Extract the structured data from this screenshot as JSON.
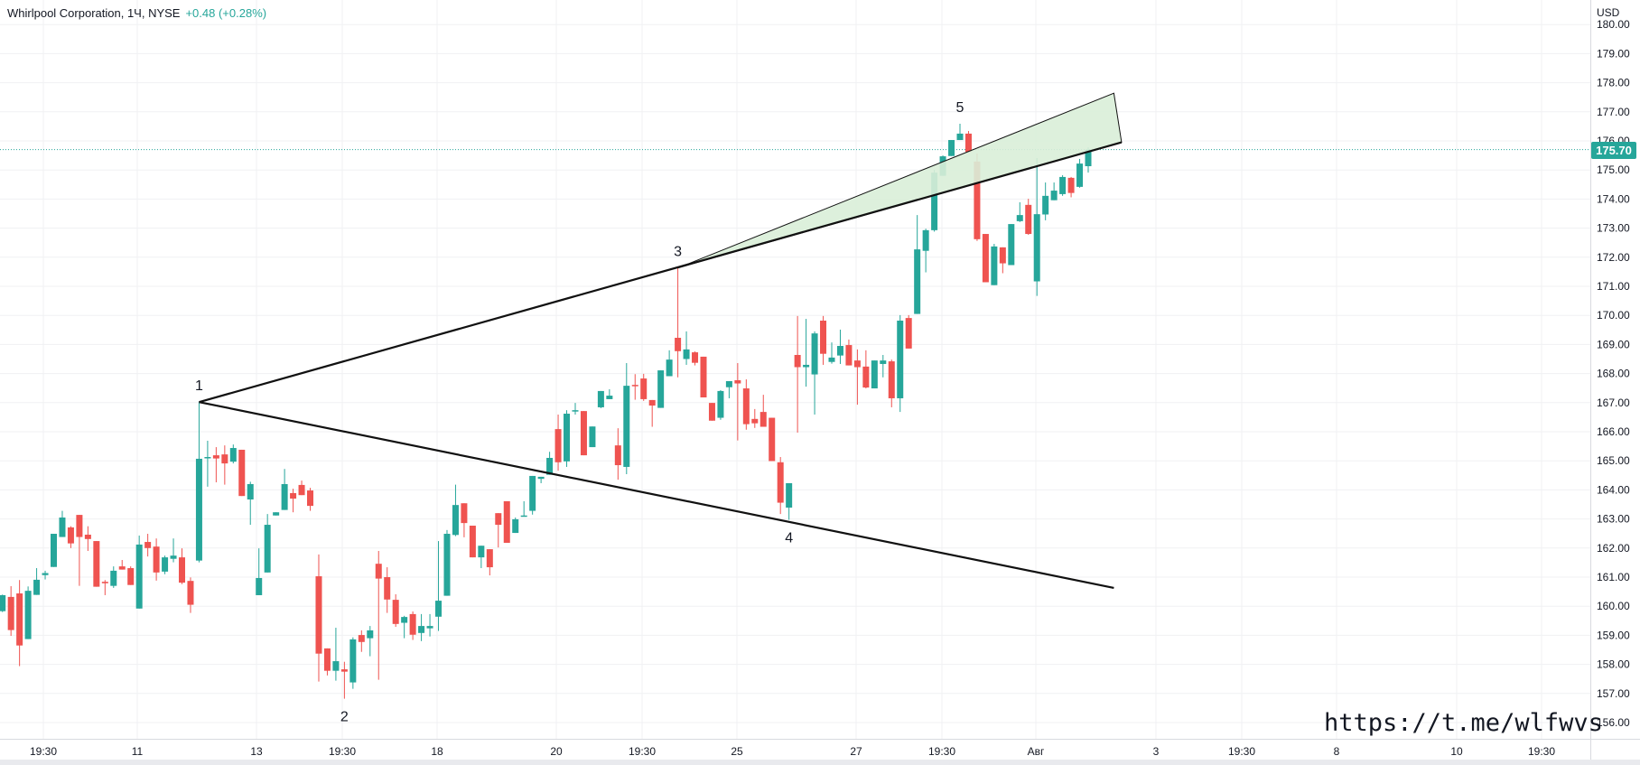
{
  "header": {
    "title": "Whirlpool Corporation, 1Ч, NYSE",
    "change": "+0.48 (+0.28%)"
  },
  "currency": "USD",
  "last_price": "175.70",
  "watermark": "https://t.me/wlfwvs",
  "colors": {
    "up": "#26a69a",
    "down": "#ef5350",
    "grid": "#f0f1f3",
    "text": "#131722",
    "fill": "#d9eed8"
  },
  "chart_data": {
    "type": "candlestick",
    "title": "Whirlpool Corporation, 1Ч, NYSE",
    "ylabel": "USD",
    "ylim": [
      155.6,
      180.0
    ],
    "grid": true,
    "y_ticks": [
      "180.00",
      "179.00",
      "178.00",
      "177.00",
      "176.00",
      "175.00",
      "174.00",
      "173.00",
      "172.00",
      "171.00",
      "170.00",
      "169.00",
      "168.00",
      "167.00",
      "166.00",
      "165.00",
      "164.00",
      "163.00",
      "162.00",
      "161.00",
      "160.00",
      "159.00",
      "158.00",
      "157.00",
      "156.00"
    ],
    "x_ticks": [
      "19:30",
      "11",
      "13",
      "19:30",
      "18",
      "20",
      "19:30",
      "25",
      "27",
      "19:30",
      "Авг",
      "3",
      "19:30",
      "8",
      "10",
      "19:30"
    ],
    "candles_format": [
      "open",
      "high",
      "low",
      "close"
    ],
    "candles": [
      [
        159.83,
        160.4,
        159.8,
        160.38
      ],
      [
        160.32,
        160.69,
        158.98,
        159.18
      ],
      [
        160.44,
        160.9,
        157.94,
        158.65
      ],
      [
        158.87,
        160.68,
        158.87,
        160.53
      ],
      [
        160.39,
        161.31,
        160.39,
        160.91
      ],
      [
        161.07,
        161.22,
        160.92,
        161.14
      ],
      [
        161.35,
        162.49,
        161.35,
        162.49
      ],
      [
        162.38,
        163.28,
        162.38,
        163.05
      ],
      [
        162.71,
        162.75,
        162.0,
        162.16
      ],
      [
        163.14,
        163.14,
        160.7,
        162.38
      ],
      [
        162.46,
        162.75,
        161.9,
        162.31
      ],
      [
        162.24,
        162.24,
        160.67,
        160.67
      ],
      [
        160.84,
        160.9,
        160.38,
        160.79
      ],
      [
        160.7,
        161.37,
        160.63,
        161.22
      ],
      [
        161.37,
        161.59,
        161.26,
        161.26
      ],
      [
        161.31,
        161.37,
        160.73,
        160.73
      ],
      [
        159.92,
        162.43,
        159.92,
        162.12
      ],
      [
        162.21,
        162.49,
        161.71,
        162.0
      ],
      [
        162.05,
        162.33,
        160.88,
        161.16
      ],
      [
        161.19,
        161.74,
        161.1,
        161.68
      ],
      [
        161.63,
        162.33,
        161.51,
        161.74
      ],
      [
        161.68,
        161.99,
        160.76,
        160.81
      ],
      [
        160.87,
        160.99,
        159.77,
        160.05
      ],
      [
        161.57,
        167.02,
        161.51,
        165.07
      ],
      [
        165.09,
        165.69,
        164.11,
        165.13
      ],
      [
        165.19,
        165.47,
        164.26,
        165.08
      ],
      [
        165.22,
        165.53,
        164.18,
        164.91
      ],
      [
        164.97,
        165.56,
        164.91,
        165.44
      ],
      [
        165.38,
        165.38,
        163.79,
        163.79
      ],
      [
        163.67,
        164.28,
        162.8,
        164.2
      ],
      [
        160.38,
        161.99,
        160.38,
        160.97
      ],
      [
        161.16,
        163.17,
        161.16,
        162.8
      ],
      [
        163.12,
        163.23,
        163.12,
        163.23
      ],
      [
        163.31,
        164.72,
        163.31,
        164.2
      ],
      [
        163.89,
        164.04,
        163.23,
        163.7
      ],
      [
        164.17,
        164.32,
        163.82,
        163.82
      ],
      [
        163.98,
        164.07,
        163.28,
        163.45
      ],
      [
        161.03,
        161.78,
        157.41,
        158.37
      ],
      [
        158.55,
        158.55,
        157.62,
        157.78
      ],
      [
        157.78,
        159.26,
        157.44,
        158.11
      ],
      [
        157.83,
        158.09,
        156.82,
        157.75
      ],
      [
        157.38,
        158.93,
        157.16,
        158.86
      ],
      [
        159.01,
        159.17,
        158.43,
        158.77
      ],
      [
        158.9,
        159.32,
        158.28,
        159.17
      ],
      [
        161.46,
        161.9,
        157.47,
        160.95
      ],
      [
        161.0,
        161.34,
        159.77,
        160.23
      ],
      [
        160.22,
        160.41,
        159.29,
        159.39
      ],
      [
        159.43,
        159.67,
        158.9,
        159.63
      ],
      [
        159.73,
        159.82,
        158.84,
        159.02
      ],
      [
        159.08,
        159.73,
        158.8,
        159.32
      ],
      [
        159.24,
        159.73,
        158.96,
        159.32
      ],
      [
        159.64,
        162.24,
        159.15,
        160.19
      ],
      [
        160.36,
        162.62,
        160.36,
        162.49
      ],
      [
        162.45,
        164.18,
        162.41,
        163.48
      ],
      [
        163.54,
        163.54,
        162.37,
        162.86
      ],
      [
        162.77,
        162.77,
        161.68,
        161.68
      ],
      [
        161.68,
        162.08,
        161.31,
        162.08
      ],
      [
        161.96,
        161.96,
        161.06,
        161.34
      ],
      [
        163.2,
        163.2,
        162.02,
        162.8
      ],
      [
        163.61,
        163.61,
        162.18,
        162.18
      ],
      [
        162.52,
        163.05,
        162.52,
        162.99
      ],
      [
        163.08,
        163.61,
        163.08,
        163.12
      ],
      [
        163.28,
        164.48,
        163.15,
        164.48
      ],
      [
        164.38,
        164.45,
        164.23,
        164.45
      ],
      [
        164.52,
        165.31,
        164.52,
        165.1
      ],
      [
        166.09,
        166.59,
        164.66,
        164.95
      ],
      [
        164.98,
        166.74,
        164.79,
        166.62
      ],
      [
        166.7,
        166.99,
        166.59,
        166.74
      ],
      [
        166.71,
        166.71,
        165.19,
        165.19
      ],
      [
        165.47,
        166.18,
        165.47,
        166.18
      ],
      [
        166.84,
        167.4,
        166.81,
        167.4
      ],
      [
        167.12,
        167.46,
        167.12,
        167.24
      ],
      [
        165.53,
        166.12,
        164.35,
        164.85
      ],
      [
        164.79,
        168.36,
        164.54,
        167.58
      ],
      [
        167.61,
        167.98,
        167.1,
        167.59
      ],
      [
        167.83,
        167.99,
        167.06,
        167.12
      ],
      [
        167.09,
        167.09,
        166.17,
        166.9
      ],
      [
        166.82,
        168.11,
        166.82,
        168.11
      ],
      [
        167.91,
        168.8,
        167.91,
        168.48
      ],
      [
        169.23,
        171.63,
        167.87,
        168.77
      ],
      [
        168.5,
        169.45,
        168.3,
        168.83
      ],
      [
        168.73,
        168.76,
        168.28,
        168.37
      ],
      [
        168.58,
        168.58,
        167.18,
        167.18
      ],
      [
        166.99,
        166.99,
        166.38,
        166.38
      ],
      [
        166.48,
        167.43,
        166.41,
        167.4
      ],
      [
        167.53,
        167.74,
        167.15,
        167.74
      ],
      [
        167.77,
        168.36,
        165.7,
        167.66
      ],
      [
        167.49,
        167.8,
        166.07,
        166.26
      ],
      [
        166.44,
        166.78,
        166.13,
        166.29
      ],
      [
        166.68,
        167.27,
        166.17,
        166.17
      ],
      [
        166.48,
        166.48,
        164.99,
        164.99
      ],
      [
        164.95,
        165.13,
        163.17,
        163.56
      ],
      [
        163.39,
        164.23,
        162.97,
        164.23
      ],
      [
        168.64,
        169.98,
        165.97,
        168.22
      ],
      [
        168.22,
        169.88,
        167.55,
        168.3
      ],
      [
        167.97,
        169.45,
        166.59,
        169.38
      ],
      [
        169.82,
        169.98,
        168.3,
        168.68
      ],
      [
        168.4,
        169.07,
        168.34,
        168.55
      ],
      [
        168.62,
        169.51,
        168.33,
        168.95
      ],
      [
        168.98,
        169.17,
        168.28,
        168.28
      ],
      [
        168.45,
        168.83,
        166.93,
        168.22
      ],
      [
        168.24,
        168.8,
        167.49,
        167.52
      ],
      [
        167.49,
        168.45,
        167.49,
        168.45
      ],
      [
        168.33,
        168.64,
        167.87,
        168.45
      ],
      [
        168.42,
        168.48,
        166.84,
        167.15
      ],
      [
        167.15,
        170.01,
        166.68,
        169.82
      ],
      [
        169.91,
        170.01,
        168.86,
        168.86
      ],
      [
        170.05,
        173.45,
        170.05,
        172.27
      ],
      [
        172.22,
        172.98,
        171.48,
        172.93
      ],
      [
        172.93,
        175.0,
        172.88,
        174.91
      ],
      [
        174.8,
        175.5,
        174.8,
        175.47
      ],
      [
        175.48,
        176.03,
        175.48,
        176.03
      ],
      [
        176.03,
        176.59,
        176.03,
        176.25
      ],
      [
        176.25,
        176.34,
        175.62,
        175.62
      ],
      [
        175.29,
        175.57,
        172.56,
        172.62
      ],
      [
        172.8,
        172.8,
        171.14,
        171.14
      ],
      [
        171.04,
        172.46,
        171.04,
        172.37
      ],
      [
        172.34,
        172.34,
        171.45,
        171.79
      ],
      [
        171.73,
        173.14,
        171.73,
        173.14
      ],
      [
        173.24,
        173.89,
        173.21,
        173.45
      ],
      [
        173.8,
        174.01,
        172.77,
        172.8
      ],
      [
        171.17,
        175.41,
        170.67,
        173.48
      ],
      [
        173.47,
        174.57,
        173.27,
        174.11
      ],
      [
        173.96,
        174.57,
        173.96,
        174.29
      ],
      [
        174.17,
        174.82,
        174.11,
        174.76
      ],
      [
        174.73,
        174.76,
        174.06,
        174.21
      ],
      [
        174.42,
        175.38,
        174.39,
        175.22
      ],
      [
        175.13,
        175.78,
        174.91,
        175.7
      ]
    ],
    "annotations": {
      "wave_points": [
        {
          "label": "1",
          "bar": 23,
          "price": 167.02,
          "pos": "above"
        },
        {
          "label": "2",
          "bar": 40,
          "price": 156.82,
          "pos": "below"
        },
        {
          "label": "3",
          "bar": 79,
          "price": 171.63,
          "pos": "above"
        },
        {
          "label": "4",
          "bar": 92,
          "price": 162.97,
          "pos": "below"
        },
        {
          "label": "5",
          "bar": 112,
          "price": 176.59,
          "pos": "above"
        }
      ],
      "upper_trendline": {
        "from": {
          "bar": 23,
          "price": 167.02
        },
        "to": {
          "bar": 130.9,
          "price": 175.95
        }
      },
      "lower_trendline": {
        "from": {
          "bar": 23,
          "price": 167.02
        },
        "to": {
          "bar": 130.0,
          "price": 160.63
        }
      },
      "triangle": [
        {
          "bar": 79,
          "price": 171.63
        },
        {
          "bar": 130.0,
          "price": 177.64
        },
        {
          "bar": 130.9,
          "price": 175.95
        }
      ],
      "last_price_line": 175.7
    }
  }
}
